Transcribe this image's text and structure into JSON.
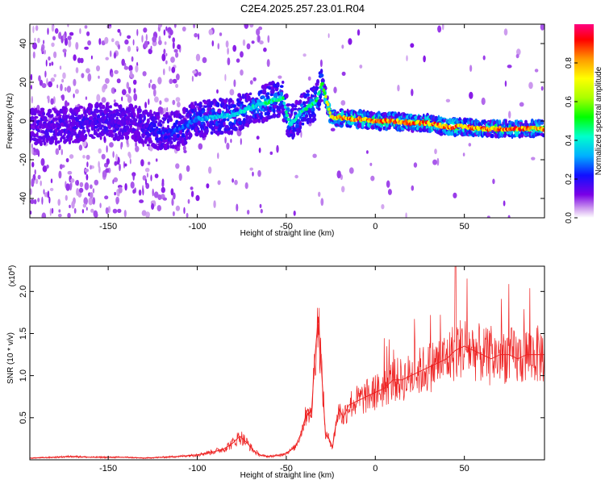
{
  "title": "C2E4.2025.257.23.01.R04",
  "chart_data": [
    {
      "type": "heatmap",
      "name": "spectrogram",
      "xlabel": "Height of straight line (km)",
      "ylabel": "Frequency (Hz)",
      "xlim": [
        -194,
        95
      ],
      "ylim": [
        -50,
        50
      ],
      "xticks": [
        -150,
        -100,
        -50,
        0,
        50
      ],
      "yticks": [
        -40,
        -20,
        0,
        20,
        40
      ],
      "colorbar": {
        "label": "Normalized spectral amplitude",
        "range": [
          0.0,
          1.0
        ],
        "ticks": [
          "0.0",
          "0.2",
          "0.4",
          "0.6",
          "0.8"
        ],
        "colors": [
          "#ffffff",
          "#cc99ee",
          "#7a00e6",
          "#1010ff",
          "#00b0ff",
          "#00ffcc",
          "#00ff00",
          "#aaff00",
          "#ffff00",
          "#ff9900",
          "#ff0000",
          "#ff0080"
        ]
      },
      "ridge": [
        {
          "x": -190,
          "f": -3,
          "amp": 0.15
        },
        {
          "x": -170,
          "f": -2,
          "amp": 0.18
        },
        {
          "x": -155,
          "f": 0,
          "amp": 0.2
        },
        {
          "x": -135,
          "f": -1,
          "amp": 0.15
        },
        {
          "x": -120,
          "f": -6,
          "amp": 0.25
        },
        {
          "x": -110,
          "f": -4,
          "amp": 0.3
        },
        {
          "x": -100,
          "f": 1,
          "amp": 0.35
        },
        {
          "x": -90,
          "f": 2,
          "amp": 0.4
        },
        {
          "x": -80,
          "f": 3,
          "amp": 0.45
        },
        {
          "x": -70,
          "f": 7,
          "amp": 0.45
        },
        {
          "x": -60,
          "f": 10,
          "amp": 0.5
        },
        {
          "x": -52,
          "f": 12,
          "amp": 0.5
        },
        {
          "x": -48,
          "f": -2,
          "amp": 0.45
        },
        {
          "x": -40,
          "f": 6,
          "amp": 0.5
        },
        {
          "x": -33,
          "f": 10,
          "amp": 0.55
        },
        {
          "x": -30,
          "f": 20,
          "amp": 0.6
        },
        {
          "x": -25,
          "f": 2,
          "amp": 0.9
        },
        {
          "x": -10,
          "f": 1,
          "amp": 0.95
        },
        {
          "x": 0,
          "f": 0,
          "amp": 0.95
        },
        {
          "x": 10,
          "f": 0,
          "amp": 0.95
        },
        {
          "x": 20,
          "f": -1,
          "amp": 0.95
        },
        {
          "x": 30,
          "f": -1,
          "amp": 0.95
        },
        {
          "x": 40,
          "f": -3,
          "amp": 0.95
        },
        {
          "x": 50,
          "f": -3,
          "amp": 0.95
        },
        {
          "x": 60,
          "f": -4,
          "amp": 0.95
        },
        {
          "x": 70,
          "f": -4,
          "amp": 0.95
        },
        {
          "x": 80,
          "f": -4,
          "amp": 0.95
        },
        {
          "x": 90,
          "f": -4,
          "amp": 0.9
        }
      ]
    },
    {
      "type": "line",
      "name": "snr",
      "xlabel": "Height of straight line (km)",
      "ylabel": "SNR (10 * v/v)",
      "yscale_label": "(x10",
      "yscale_exp": "4",
      "yscale_close": ")",
      "xlim": [
        -194,
        95
      ],
      "ylim": [
        0,
        2.3
      ],
      "xticks": [
        -150,
        -100,
        -50,
        0,
        50
      ],
      "yticks": [
        "0.5",
        "1.0",
        "1.5",
        "2.0"
      ],
      "ytick_values": [
        0.5,
        1.0,
        1.5,
        2.0
      ],
      "color": "#ee2222",
      "series": [
        {
          "name": "SNR",
          "x": [
            -194,
            -180,
            -170,
            -160,
            -150,
            -140,
            -130,
            -120,
            -110,
            -100,
            -95,
            -90,
            -85,
            -80,
            -76,
            -72,
            -68,
            -64,
            -60,
            -55,
            -50,
            -45,
            -42,
            -40,
            -38,
            -36,
            -34,
            -32,
            -30,
            -28,
            -26,
            -24,
            -22,
            -20,
            -18,
            -15,
            -10,
            -5,
            0,
            5,
            10,
            15,
            20,
            25,
            30,
            35,
            40,
            45,
            50,
            55,
            60,
            65,
            70,
            75,
            80,
            85,
            90,
            95
          ],
          "y": [
            0.02,
            0.03,
            0.04,
            0.03,
            0.03,
            0.03,
            0.02,
            0.03,
            0.04,
            0.06,
            0.08,
            0.1,
            0.13,
            0.2,
            0.28,
            0.2,
            0.1,
            0.05,
            0.04,
            0.05,
            0.08,
            0.15,
            0.3,
            0.45,
            0.6,
            0.5,
            1.2,
            1.7,
            1.0,
            0.3,
            0.25,
            0.15,
            0.45,
            0.6,
            0.5,
            0.65,
            0.7,
            0.75,
            0.8,
            0.85,
            0.95,
            0.95,
            1.0,
            1.05,
            1.1,
            1.15,
            1.2,
            1.3,
            1.35,
            1.3,
            1.25,
            1.2,
            1.25,
            1.25,
            1.2,
            1.25,
            1.25,
            1.25
          ]
        }
      ]
    }
  ]
}
